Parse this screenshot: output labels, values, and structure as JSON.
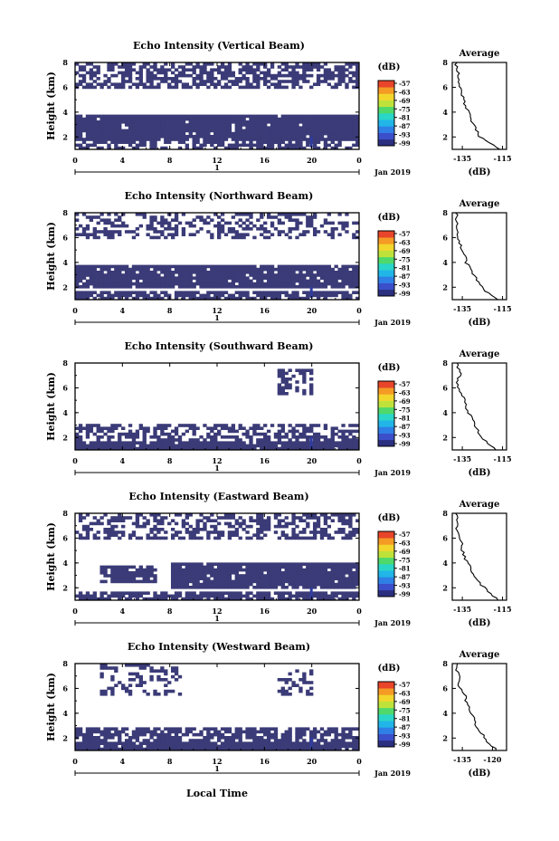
{
  "colors": {
    "echo": "#3b3b78",
    "echo_strong": "#2f3ca0",
    "cbar": [
      "#2b2f7f",
      "#3a4fc9",
      "#2e7fe6",
      "#21b5e8",
      "#2ad6c8",
      "#4fd96b",
      "#bfe23a",
      "#f3d62c",
      "#f59a25",
      "#e8452a"
    ]
  },
  "footer": {
    "xaxis_title": "Local Time"
  },
  "chart_data": [
    {
      "type": "heatmap",
      "title": "Echo Intensity (Vertical Beam)",
      "ylabel": "Height (km)",
      "xticks": [
        "0",
        "4",
        "8",
        "12",
        "16",
        "20",
        "0"
      ],
      "day_label": "1",
      "date_label": "Jan 2019",
      "yticks": [
        "2",
        "4",
        "6",
        "8"
      ],
      "xlim": [
        0,
        24
      ],
      "ylim": [
        1,
        8
      ],
      "colorbar": {
        "unit": "(dB)",
        "ticks": [
          "-57",
          "-63",
          "-69",
          "-75",
          "-81",
          "-87",
          "-93",
          "-99"
        ]
      },
      "echo_regions": [
        {
          "x": [
            0,
            24
          ],
          "y": [
            1.0,
            1.8
          ],
          "fill": 0.55
        },
        {
          "x": [
            0,
            24
          ],
          "y": [
            1.8,
            3.9
          ],
          "fill": 0.97
        },
        {
          "x": [
            0,
            24
          ],
          "y": [
            6.0,
            8.0
          ],
          "fill": 0.6
        }
      ],
      "profile": {
        "title": "Average",
        "xlabel": "(dB)",
        "xticks": [
          "-135",
          "-115"
        ],
        "yticks": [
          "2",
          "4",
          "6",
          "8"
        ],
        "xlim": [
          -140,
          -113
        ],
        "ylim": [
          1,
          8
        ],
        "height": [
          1.0,
          1.5,
          2.0,
          2.5,
          3.0,
          3.5,
          4.0,
          4.5,
          5.0,
          5.5,
          6.0,
          6.5,
          7.0,
          7.5,
          8.0
        ],
        "db": [
          -116,
          -121,
          -126,
          -128,
          -129,
          -131,
          -132,
          -134,
          -134,
          -135,
          -136,
          -137,
          -137,
          -138,
          -138
        ]
      }
    },
    {
      "type": "heatmap",
      "title": "Echo Intensity (Northward Beam)",
      "ylabel": "Height (km)",
      "xticks": [
        "0",
        "4",
        "8",
        "12",
        "16",
        "20",
        "0"
      ],
      "day_label": "1",
      "date_label": "Jan 2019",
      "yticks": [
        "2",
        "4",
        "6",
        "8"
      ],
      "xlim": [
        0,
        24
      ],
      "ylim": [
        1,
        8
      ],
      "colorbar": {
        "unit": "(dB)",
        "ticks": [
          "-57",
          "-63",
          "-69",
          "-75",
          "-81",
          "-87",
          "-93",
          "-99"
        ]
      },
      "echo_regions": [
        {
          "x": [
            0,
            24
          ],
          "y": [
            1.0,
            1.6
          ],
          "fill": 0.75
        },
        {
          "x": [
            0,
            24
          ],
          "y": [
            2.0,
            3.8
          ],
          "fill": 0.92
        },
        {
          "x": [
            0,
            24
          ],
          "y": [
            5.8,
            8.0
          ],
          "fill": 0.35
        }
      ],
      "profile": {
        "title": "Average",
        "xlabel": "(dB)",
        "xticks": [
          "-135",
          "-115"
        ],
        "yticks": [
          "2",
          "4",
          "6",
          "8"
        ],
        "xlim": [
          -140,
          -113
        ],
        "ylim": [
          1,
          8
        ],
        "height": [
          1.0,
          1.5,
          2.0,
          2.5,
          3.0,
          3.5,
          4.0,
          4.5,
          5.0,
          5.5,
          6.0,
          6.5,
          7.0,
          7.5,
          8.0
        ],
        "db": [
          -117,
          -122,
          -125,
          -127,
          -129,
          -131,
          -133,
          -134,
          -135,
          -136,
          -137,
          -137,
          -138,
          -138,
          -138
        ]
      }
    },
    {
      "type": "heatmap",
      "title": "Echo Intensity (Southward Beam)",
      "ylabel": "Height (km)",
      "xticks": [
        "0",
        "4",
        "8",
        "12",
        "16",
        "20",
        "0"
      ],
      "day_label": "1",
      "date_label": "Jan 2019",
      "yticks": [
        "2",
        "4",
        "6",
        "8"
      ],
      "xlim": [
        0,
        24
      ],
      "ylim": [
        1,
        8
      ],
      "colorbar": {
        "unit": "(dB)",
        "ticks": [
          "-57",
          "-63",
          "-69",
          "-75",
          "-81",
          "-87",
          "-93",
          "-99"
        ]
      },
      "echo_regions": [
        {
          "x": [
            0,
            24
          ],
          "y": [
            1.0,
            1.7
          ],
          "fill": 0.95
        },
        {
          "x": [
            0,
            24
          ],
          "y": [
            1.7,
            3.0
          ],
          "fill": 0.55
        },
        {
          "x": [
            17,
            20
          ],
          "y": [
            5.5,
            7.5
          ],
          "fill": 0.45
        }
      ],
      "profile": {
        "title": "Average",
        "xlabel": "(dB)",
        "xticks": [
          "-135",
          "-115"
        ],
        "yticks": [
          "2",
          "4",
          "6",
          "8"
        ],
        "xlim": [
          -140,
          -113
        ],
        "ylim": [
          1,
          8
        ],
        "height": [
          1.0,
          1.5,
          2.0,
          2.5,
          3.0,
          3.5,
          4.0,
          4.5,
          5.0,
          5.5,
          6.0,
          6.5,
          7.0,
          7.5,
          8.0
        ],
        "db": [
          -118,
          -122,
          -125,
          -127,
          -129,
          -130,
          -132,
          -134,
          -133,
          -136,
          -137,
          -138,
          -136,
          -137,
          -138
        ]
      }
    },
    {
      "type": "heatmap",
      "title": "Echo Intensity (Eastward Beam)",
      "ylabel": "Height (km)",
      "xticks": [
        "0",
        "4",
        "8",
        "12",
        "16",
        "20",
        "0"
      ],
      "day_label": "1",
      "date_label": "Jan 2019",
      "yticks": [
        "2",
        "4",
        "6",
        "8"
      ],
      "xlim": [
        0,
        24
      ],
      "ylim": [
        1,
        8
      ],
      "colorbar": {
        "unit": "(dB)",
        "ticks": [
          "-57",
          "-63",
          "-69",
          "-75",
          "-81",
          "-87",
          "-93",
          "-99"
        ]
      },
      "echo_regions": [
        {
          "x": [
            0,
            24
          ],
          "y": [
            1.0,
            1.8
          ],
          "fill": 0.8
        },
        {
          "x": [
            8,
            24
          ],
          "y": [
            2.0,
            4.0
          ],
          "fill": 0.95
        },
        {
          "x": [
            2,
            7
          ],
          "y": [
            2.5,
            3.8
          ],
          "fill": 0.85
        },
        {
          "x": [
            0,
            24
          ],
          "y": [
            5.8,
            8.0
          ],
          "fill": 0.45
        }
      ],
      "profile": {
        "title": "Average",
        "xlabel": "(dB)",
        "xticks": [
          "-135",
          "-115"
        ],
        "yticks": [
          "2",
          "4",
          "6",
          "8"
        ],
        "xlim": [
          -140,
          -113
        ],
        "ylim": [
          1,
          8
        ],
        "height": [
          1.0,
          1.5,
          2.0,
          2.5,
          3.0,
          3.5,
          4.0,
          4.5,
          5.0,
          5.5,
          6.0,
          6.5,
          7.0,
          7.5,
          8.0
        ],
        "db": [
          -117,
          -121,
          -124,
          -127,
          -129,
          -131,
          -132,
          -134,
          -135,
          -135,
          -136,
          -137,
          -138,
          -138,
          -138
        ]
      }
    },
    {
      "type": "heatmap",
      "title": "Echo Intensity (Westward Beam)",
      "ylabel": "Height (km)",
      "xticks": [
        "0",
        "4",
        "8",
        "12",
        "16",
        "20",
        "0"
      ],
      "day_label": "1",
      "date_label": "Jan 2019",
      "yticks": [
        "2",
        "4",
        "6",
        "8"
      ],
      "xlim": [
        0,
        24
      ],
      "ylim": [
        1,
        8
      ],
      "colorbar": {
        "unit": "(dB)",
        "ticks": [
          "-57",
          "-63",
          "-69",
          "-75",
          "-81",
          "-87",
          "-93",
          "-99"
        ]
      },
      "echo_regions": [
        {
          "x": [
            0,
            24
          ],
          "y": [
            1.0,
            1.7
          ],
          "fill": 0.95
        },
        {
          "x": [
            0,
            24
          ],
          "y": [
            1.7,
            2.8
          ],
          "fill": 0.7
        },
        {
          "x": [
            2,
            9
          ],
          "y": [
            5.5,
            8.0
          ],
          "fill": 0.4
        },
        {
          "x": [
            17,
            20
          ],
          "y": [
            5.5,
            7.5
          ],
          "fill": 0.4
        }
      ],
      "profile": {
        "title": "Average",
        "xlabel": "(dB)",
        "xticks": [
          "-135",
          "-120"
        ],
        "yticks": [
          "2",
          "4",
          "6",
          "8"
        ],
        "xlim": [
          -140,
          -113
        ],
        "ylim": [
          1,
          8
        ],
        "height": [
          1.0,
          1.5,
          2.0,
          2.5,
          3.0,
          3.5,
          4.0,
          4.5,
          5.0,
          5.5,
          6.0,
          6.5,
          7.0,
          7.5,
          8.0
        ],
        "db": [
          -118,
          -121,
          -124,
          -126,
          -128,
          -129,
          -131,
          -132,
          -133,
          -134,
          -136,
          -137,
          -137,
          -138,
          -138
        ]
      }
    }
  ]
}
